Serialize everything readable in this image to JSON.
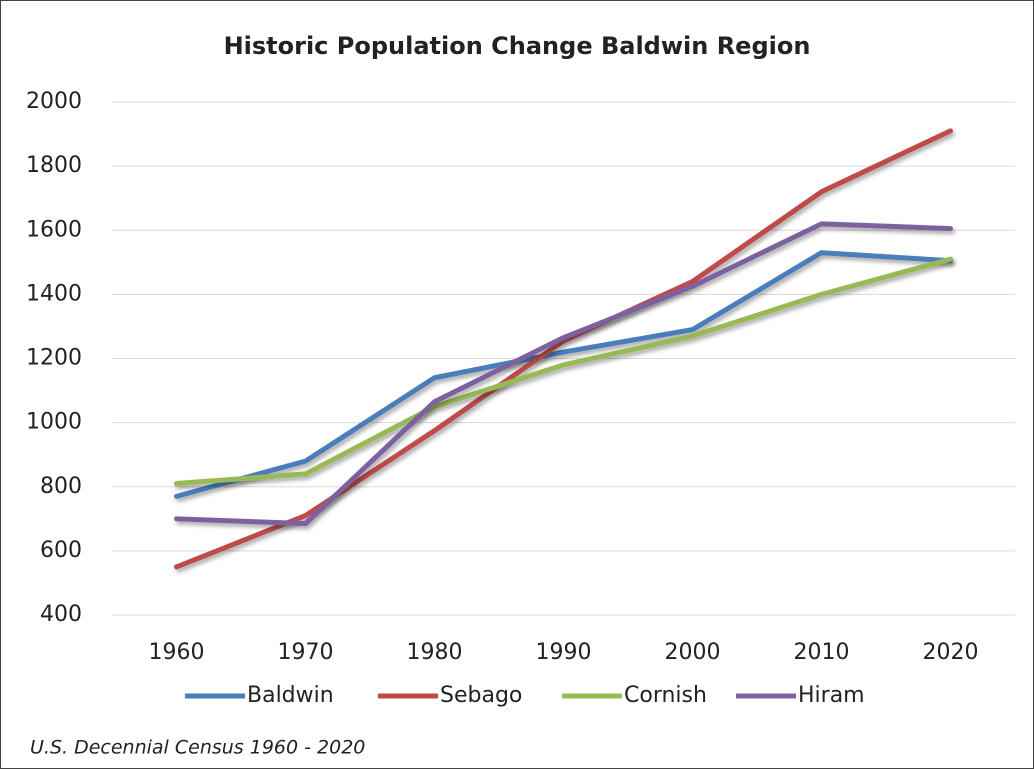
{
  "chart_data": {
    "type": "line",
    "title": "Historic Population Change Baldwin Region",
    "categories": [
      "1960",
      "1970",
      "1980",
      "1990",
      "2000",
      "2010",
      "2020"
    ],
    "series": [
      {
        "name": "Baldwin",
        "color": "#4a7ebb",
        "values": [
          770,
          880,
          1140,
          1220,
          1290,
          1530,
          1505
        ]
      },
      {
        "name": "Sebago",
        "color": "#be4b48",
        "values": [
          550,
          710,
          975,
          1255,
          1440,
          1720,
          1910
        ]
      },
      {
        "name": "Cornish",
        "color": "#98b954",
        "values": [
          810,
          840,
          1050,
          1180,
          1270,
          1400,
          1510
        ]
      },
      {
        "name": "Hiram",
        "color": "#7d60a0",
        "values": [
          700,
          685,
          1065,
          1265,
          1425,
          1620,
          1605
        ]
      }
    ],
    "ylim": [
      400,
      2000
    ],
    "yticks": [
      400,
      600,
      800,
      1000,
      1200,
      1400,
      1600,
      1800,
      2000
    ],
    "grid": true,
    "legend": "bottom",
    "annotation": "U.S. Decennial Census 1960 - 2020"
  }
}
